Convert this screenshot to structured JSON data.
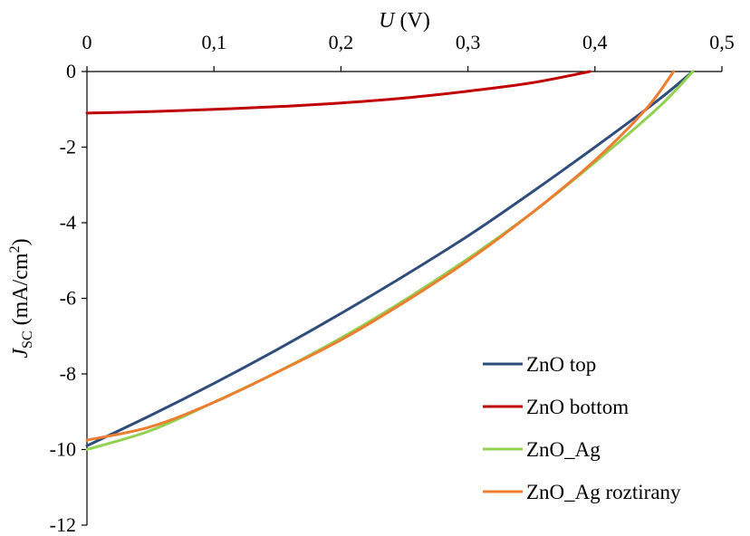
{
  "chart_data": {
    "type": "line",
    "xlabel": {
      "var": "U",
      "unit": " (V)"
    },
    "ylabel": {
      "var": "J",
      "sub": "SC",
      "unit_pre": " (mA/cm",
      "sup": "2",
      "unit_post": ")"
    },
    "xlim": [
      0,
      0.5
    ],
    "ylim": [
      -12,
      0
    ],
    "xticks": [
      0,
      0.1,
      0.2,
      0.3,
      0.4,
      0.5
    ],
    "xtick_labels": [
      "0",
      "0,1",
      "0,2",
      "0,3",
      "0,4",
      "0,5"
    ],
    "yticks": [
      0,
      -2,
      -4,
      -6,
      -8,
      -10,
      -12
    ],
    "ytick_labels": [
      "0",
      "-2",
      "-4",
      "-6",
      "-8",
      "-10",
      "-12"
    ],
    "x_axis_position": "top",
    "grid": false,
    "legend_position": "bottom-right",
    "series": [
      {
        "name": "ZnO top",
        "color": "#2e4d7b",
        "x": [
          0,
          0.05,
          0.1,
          0.15,
          0.2,
          0.25,
          0.3,
          0.35,
          0.4,
          0.45,
          0.477
        ],
        "y": [
          -9.9,
          -9.1,
          -8.25,
          -7.35,
          -6.4,
          -5.4,
          -4.35,
          -3.2,
          -2.0,
          -0.75,
          0
        ]
      },
      {
        "name": "ZnO bottom",
        "color": "#c00000",
        "x": [
          0,
          0.05,
          0.1,
          0.15,
          0.2,
          0.25,
          0.3,
          0.35,
          0.396
        ],
        "y": [
          -1.1,
          -1.06,
          -1.0,
          -0.93,
          -0.83,
          -0.7,
          -0.52,
          -0.3,
          0
        ]
      },
      {
        "name": "ZnO_Ag",
        "color": "#92d050",
        "x": [
          0,
          0.05,
          0.1,
          0.15,
          0.2,
          0.25,
          0.3,
          0.35,
          0.4,
          0.45,
          0.477
        ],
        "y": [
          -10.0,
          -9.5,
          -8.75,
          -7.95,
          -7.05,
          -6.05,
          -4.95,
          -3.75,
          -2.4,
          -0.95,
          0
        ]
      },
      {
        "name": "ZnO_Ag roztirany",
        "color": "#ed7d31",
        "x": [
          0,
          0.05,
          0.1,
          0.15,
          0.2,
          0.25,
          0.3,
          0.35,
          0.4,
          0.44,
          0.462
        ],
        "y": [
          -9.75,
          -9.4,
          -8.75,
          -7.95,
          -7.1,
          -6.1,
          -5.0,
          -3.75,
          -2.35,
          -1.0,
          0
        ]
      }
    ]
  }
}
